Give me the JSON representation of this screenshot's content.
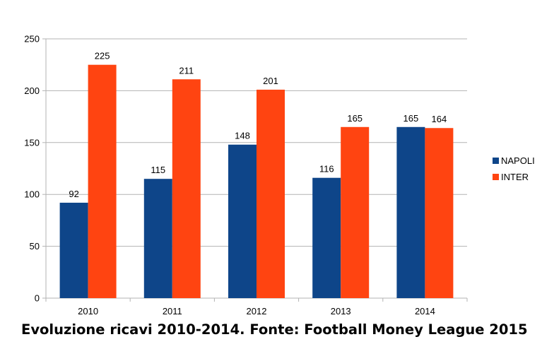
{
  "caption": "Evoluzione ricavi 2010-2014. Fonte: Football Money League 2015",
  "chart_data": {
    "type": "bar",
    "title": "",
    "xlabel": "",
    "ylabel": "",
    "categories": [
      "2010",
      "2011",
      "2012",
      "2013",
      "2014"
    ],
    "series": [
      {
        "name": "NAPOLI",
        "color": "#0E4589",
        "values": [
          92,
          115,
          148,
          116,
          165
        ]
      },
      {
        "name": "INTER",
        "color": "#FF4411",
        "values": [
          225,
          211,
          201,
          165,
          164
        ]
      }
    ],
    "ylim": [
      0,
      250
    ],
    "yticks": [
      0,
      50,
      100,
      150,
      200,
      250
    ],
    "grid": true,
    "legend": "right",
    "data_labels": true
  }
}
